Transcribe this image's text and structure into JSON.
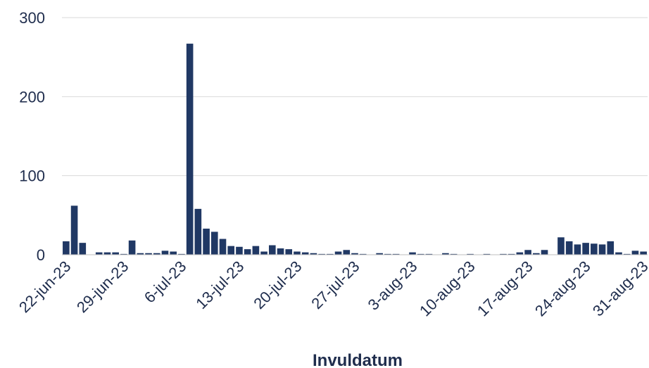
{
  "chart_data": {
    "type": "bar",
    "xlabel": "Invuldatum",
    "ylabel": "",
    "ylim": [
      0,
      300
    ],
    "yticks": [
      0,
      100,
      200,
      300
    ],
    "grid": true,
    "bar_color": "#203864",
    "tick_labels": [
      "22-jun-23",
      "29-jun-23",
      "6-jul-23",
      "13-jul-23",
      "20-jul-23",
      "27-jul-23",
      "3-aug-23",
      "10-aug-23",
      "17-aug-23",
      "24-aug-23",
      "31-aug-23"
    ],
    "tick_every": 7,
    "values": [
      17,
      62,
      15,
      0,
      3,
      3,
      3,
      1,
      18,
      2,
      2,
      2,
      5,
      4,
      1,
      267,
      58,
      33,
      29,
      20,
      11,
      10,
      7,
      11,
      4,
      12,
      8,
      7,
      4,
      3,
      2,
      1,
      1,
      4,
      6,
      2,
      1,
      0,
      2,
      1,
      1,
      0,
      3,
      1,
      1,
      0,
      2,
      1,
      0,
      1,
      0,
      1,
      0,
      1,
      1,
      3,
      6,
      2,
      6,
      0,
      22,
      17,
      13,
      15,
      14,
      13,
      17,
      3,
      1,
      5,
      4
    ]
  }
}
